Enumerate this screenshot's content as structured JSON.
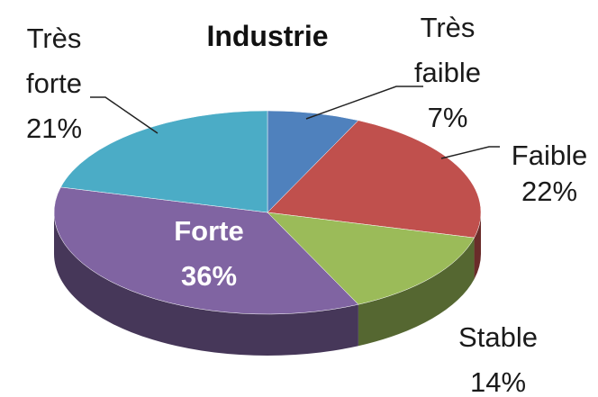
{
  "chart_data": {
    "type": "pie3d",
    "title": "Industrie",
    "categories": [
      "Très faible",
      "Faible",
      "Stable",
      "Forte",
      "Très forte"
    ],
    "values": [
      7,
      22,
      14,
      36,
      21
    ],
    "value_labels": [
      "7%",
      "22%",
      "14%",
      "36%",
      "21%"
    ],
    "colors": [
      "#4f81bd",
      "#c0504d",
      "#9bbb59",
      "#8064a2",
      "#4bacc6"
    ]
  }
}
